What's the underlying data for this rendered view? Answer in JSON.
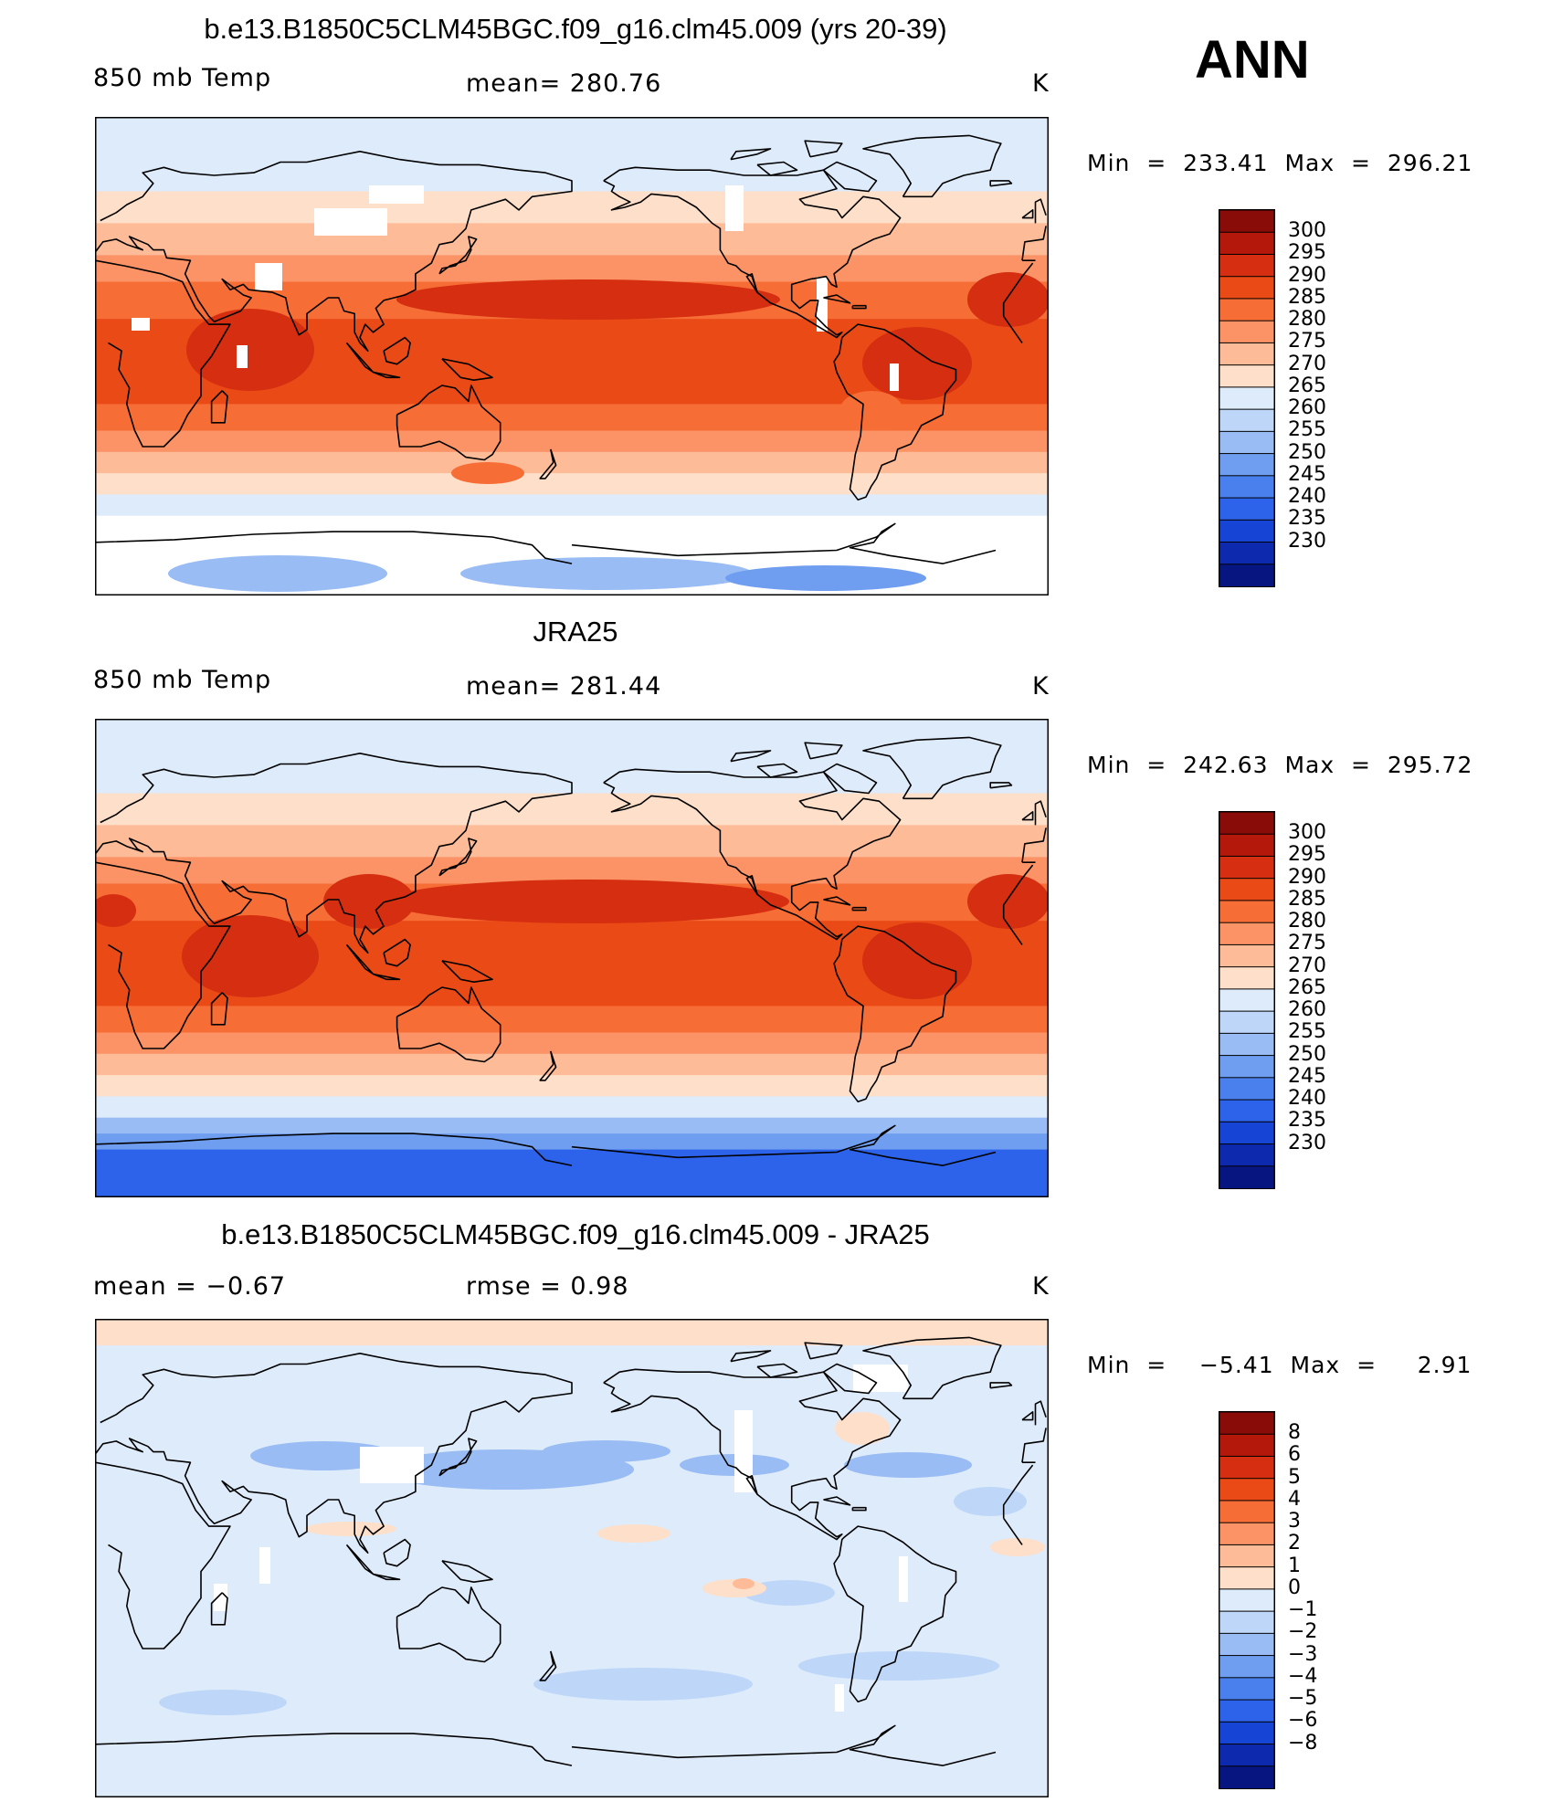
{
  "season": "ANN",
  "panels": [
    {
      "id": "model",
      "title": "b.e13.B1850C5CLM45BGC.f09_g16.clm45.009 (yrs 20-39)",
      "left_label": "850 mb Temp",
      "center_label": "mean=  280.76",
      "units": "K",
      "minmax": "Min  =  233.41  Max  =  296.21",
      "colorbar_levels": [
        "300",
        "295",
        "290",
        "285",
        "280",
        "275",
        "270",
        "265",
        "260",
        "255",
        "250",
        "245",
        "240",
        "235",
        "230"
      ],
      "colorbar_colors": [
        "#8a0c09",
        "#b4180b",
        "#d52e10",
        "#ea4a16",
        "#f76d36",
        "#fb9366",
        "#fdbb98",
        "#fedfc9",
        "#deebfa",
        "#bed7f8",
        "#98bcf3",
        "#6f9ef0",
        "#4a80ee",
        "#2d62ea",
        "#1645d6",
        "#0d2aae",
        "#071580"
      ],
      "map_style": "model"
    },
    {
      "id": "obs",
      "title": "JRA25",
      "left_label": "850 mb Temp",
      "center_label": "mean=  281.44",
      "units": "K",
      "minmax": "Min  =  242.63  Max  =  295.72",
      "colorbar_levels": [
        "300",
        "295",
        "290",
        "285",
        "280",
        "275",
        "270",
        "265",
        "260",
        "255",
        "250",
        "245",
        "240",
        "235",
        "230"
      ],
      "colorbar_colors": [
        "#8a0c09",
        "#b4180b",
        "#d52e10",
        "#ea4a16",
        "#f76d36",
        "#fb9366",
        "#fdbb98",
        "#fedfc9",
        "#deebfa",
        "#bed7f8",
        "#98bcf3",
        "#6f9ef0",
        "#4a80ee",
        "#2d62ea",
        "#1645d6",
        "#0d2aae",
        "#071580"
      ],
      "map_style": "obs"
    },
    {
      "id": "diff",
      "title": "b.e13.B1850C5CLM45BGC.f09_g16.clm45.009 - JRA25",
      "left_label": "mean =    −0.67",
      "center_label": "rmse =     0.98",
      "units": "K",
      "minmax": "Min  =    −5.41  Max  =     2.91",
      "colorbar_levels": [
        "8",
        "6",
        "5",
        "4",
        "3",
        "2",
        "1",
        "0",
        "−1",
        "−2",
        "−3",
        "−4",
        "−5",
        "−6",
        "−8"
      ],
      "colorbar_colors": [
        "#8a0c09",
        "#b4180b",
        "#d52e10",
        "#ea4a16",
        "#f76d36",
        "#fb9366",
        "#fdbb98",
        "#fedfc9",
        "#deebfa",
        "#bed7f8",
        "#98bcf3",
        "#6f9ef0",
        "#4a80ee",
        "#2d62ea",
        "#1645d6",
        "#0d2aae",
        "#071580"
      ],
      "map_style": "diff"
    }
  ]
}
